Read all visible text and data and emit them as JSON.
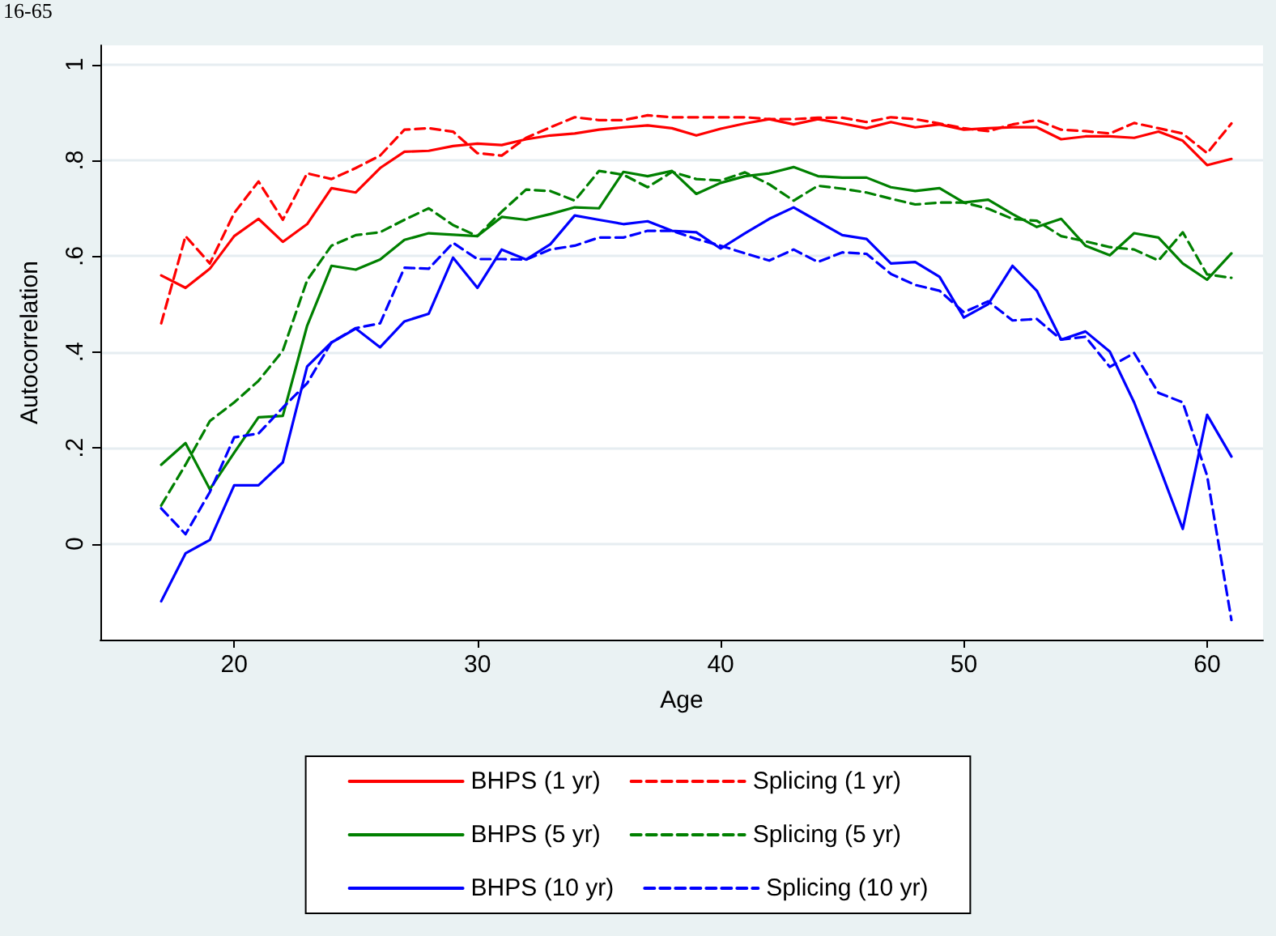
{
  "chart_data": {
    "type": "line",
    "xlabel": "Age",
    "ylabel": "Autocorrelation",
    "annotations": [
      "16-65"
    ],
    "x": [
      17,
      18,
      19,
      20,
      21,
      22,
      23,
      24,
      25,
      26,
      27,
      28,
      29,
      30,
      31,
      32,
      33,
      34,
      35,
      36,
      37,
      38,
      39,
      40,
      41,
      42,
      43,
      44,
      45,
      46,
      47,
      48,
      49,
      50,
      51,
      52,
      53,
      54,
      55,
      56,
      57,
      58,
      59,
      60,
      61
    ],
    "xlim": [
      14.5,
      62.3
    ],
    "xticks": [
      20,
      30,
      40,
      50,
      60
    ],
    "ylim": [
      -0.2,
      1.04
    ],
    "yticks": [
      {
        "value": 0,
        "label": "0"
      },
      {
        "value": 0.2,
        "label": ".2"
      },
      {
        "value": 0.4,
        "label": ".4"
      },
      {
        "value": 0.6,
        "label": ".6"
      },
      {
        "value": 0.8,
        "label": ".8"
      },
      {
        "value": 1,
        "label": "1"
      }
    ],
    "grid": "y",
    "legend": "bottom",
    "marker": "none",
    "series": [
      {
        "name": "BHPS (1 yr)",
        "color": "#ff0000",
        "line_style": "solid",
        "values": [
          0.56,
          0.534,
          0.574,
          0.642,
          0.678,
          0.63,
          0.667,
          0.742,
          0.733,
          0.784,
          0.818,
          0.82,
          0.83,
          0.835,
          0.832,
          0.844,
          0.852,
          0.856,
          0.864,
          0.869,
          0.873,
          0.867,
          0.852,
          0.866,
          0.877,
          0.886,
          0.875,
          0.886,
          0.877,
          0.867,
          0.88,
          0.869,
          0.875,
          0.864,
          0.867,
          0.869,
          0.869,
          0.844,
          0.85,
          0.85,
          0.847,
          0.86,
          0.841,
          0.79,
          0.803
        ]
      },
      {
        "name": "Splicing (1 yr)",
        "color": "#ff0000",
        "line_style": "dashed",
        "values": [
          0.46,
          0.642,
          0.585,
          0.69,
          0.756,
          0.676,
          0.773,
          0.761,
          0.784,
          0.81,
          0.864,
          0.867,
          0.86,
          0.815,
          0.81,
          0.847,
          0.869,
          0.89,
          0.884,
          0.884,
          0.894,
          0.89,
          0.89,
          0.89,
          0.89,
          0.886,
          0.886,
          0.889,
          0.889,
          0.88,
          0.89,
          0.886,
          0.877,
          0.867,
          0.861,
          0.875,
          0.884,
          0.864,
          0.861,
          0.856,
          0.878,
          0.867,
          0.856,
          0.815,
          0.877
        ]
      },
      {
        "name": "BHPS (5 yr)",
        "color": "#008000",
        "line_style": "solid",
        "values": [
          0.165,
          0.21,
          0.114,
          0.19,
          0.264,
          0.267,
          0.455,
          0.58,
          0.572,
          0.593,
          0.634,
          0.648,
          0.645,
          0.642,
          0.682,
          0.676,
          0.688,
          0.702,
          0.7,
          0.776,
          0.767,
          0.778,
          0.73,
          0.753,
          0.767,
          0.773,
          0.786,
          0.767,
          0.764,
          0.764,
          0.744,
          0.736,
          0.742,
          0.712,
          0.718,
          0.688,
          0.661,
          0.678,
          0.622,
          0.602,
          0.648,
          0.639,
          0.585,
          0.551,
          0.606
        ]
      },
      {
        "name": "Splicing (5 yr)",
        "color": "#008000",
        "line_style": "dashed",
        "values": [
          0.08,
          0.165,
          0.256,
          0.295,
          0.34,
          0.403,
          0.55,
          0.622,
          0.644,
          0.65,
          0.676,
          0.7,
          0.665,
          0.642,
          0.693,
          0.739,
          0.736,
          0.716,
          0.778,
          0.77,
          0.744,
          0.776,
          0.761,
          0.758,
          0.775,
          0.75,
          0.716,
          0.747,
          0.741,
          0.733,
          0.72,
          0.708,
          0.712,
          0.712,
          0.699,
          0.678,
          0.674,
          0.642,
          0.631,
          0.619,
          0.614,
          0.591,
          0.65,
          0.562,
          0.555
        ]
      },
      {
        "name": "BHPS (10 yr)",
        "color": "#0000ff",
        "line_style": "solid",
        "values": [
          -0.12,
          -0.02,
          0.008,
          0.122,
          0.122,
          0.17,
          0.37,
          0.42,
          0.449,
          0.41,
          0.464,
          0.48,
          0.597,
          0.534,
          0.614,
          0.593,
          0.625,
          0.685,
          0.676,
          0.667,
          0.673,
          0.653,
          0.65,
          0.616,
          0.648,
          0.678,
          0.702,
          0.673,
          0.644,
          0.636,
          0.585,
          0.588,
          0.557,
          0.472,
          0.5,
          0.58,
          0.528,
          0.426,
          0.443,
          0.401,
          0.295,
          0.165,
          0.031,
          0.269,
          0.182
        ]
      },
      {
        "name": "Splicing (10 yr)",
        "color": "#0000ff",
        "line_style": "dashed",
        "values": [
          0.074,
          0.02,
          0.108,
          0.222,
          0.23,
          0.284,
          0.335,
          0.42,
          0.45,
          0.46,
          0.576,
          0.574,
          0.628,
          0.594,
          0.594,
          0.593,
          0.614,
          0.622,
          0.639,
          0.639,
          0.653,
          0.653,
          0.636,
          0.622,
          0.606,
          0.591,
          0.614,
          0.588,
          0.608,
          0.605,
          0.563,
          0.54,
          0.528,
          0.483,
          0.506,
          0.466,
          0.469,
          0.426,
          0.432,
          0.369,
          0.398,
          0.315,
          0.295,
          0.142,
          -0.159
        ]
      }
    ]
  }
}
